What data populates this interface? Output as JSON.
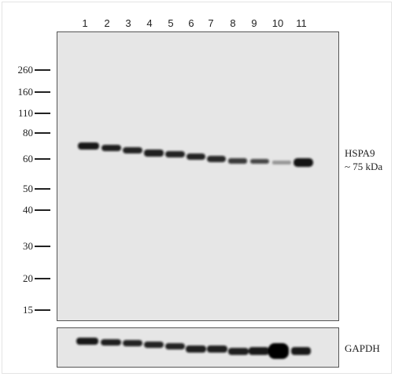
{
  "lanes": [
    "1",
    "2",
    "3",
    "4",
    "5",
    "6",
    "7",
    "8",
    "9",
    "10",
    "11"
  ],
  "markers": [
    "260",
    "160",
    "110",
    "80",
    "60",
    "50",
    "40",
    "30",
    "20",
    "15"
  ],
  "target": {
    "name": "HSPA9",
    "size": "~ 75 kDa"
  },
  "loading_control": {
    "name": "GAPDH"
  },
  "colors": {
    "membrane": "#e6e6e6",
    "band": "#111111"
  }
}
